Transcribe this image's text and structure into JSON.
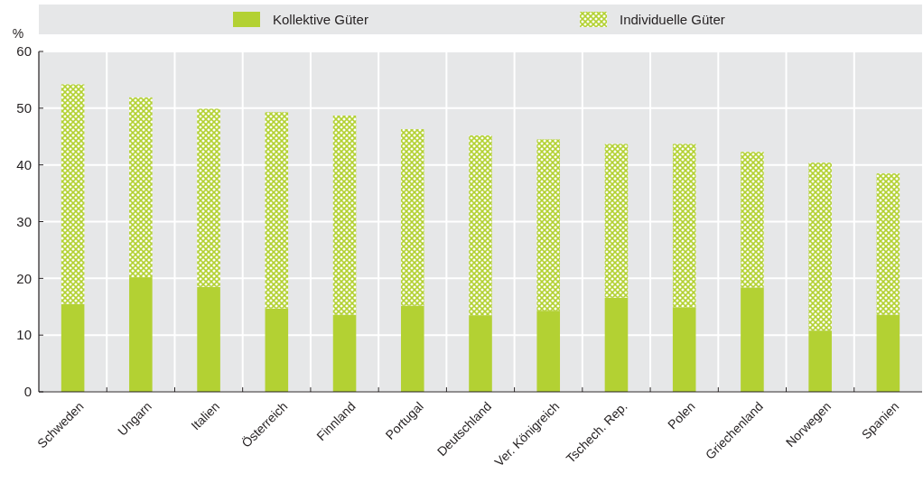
{
  "chart_data": {
    "type": "bar",
    "ylabel": "%",
    "stacked": true,
    "categories": [
      "Schweden",
      "Ungarn",
      "Italien",
      "Österreich",
      "Finnland",
      "Portugal",
      "Deutschland",
      "Ver. Königreich",
      "Tschech. Rep.",
      "Polen",
      "Griechenland",
      "Norwegen",
      "Spanien"
    ],
    "series": [
      {
        "name": "Kollektive Güter",
        "color": "#b3d133",
        "values": [
          15.5,
          20.2,
          18.5,
          14.7,
          13.6,
          15.2,
          13.5,
          14.3,
          16.6,
          14.9,
          18.4,
          10.8,
          13.6
        ]
      },
      {
        "name": "Individuelle Güter",
        "color": "#b3d133",
        "values": [
          38.7,
          31.7,
          31.4,
          34.6,
          35.1,
          31.1,
          31.7,
          30.2,
          27.1,
          28.8,
          23.9,
          29.6,
          24.9
        ]
      }
    ],
    "ylim": [
      0,
      60
    ],
    "yticks": [
      0,
      10,
      20,
      30,
      40,
      50,
      60
    ],
    "grid": true,
    "legend": "top"
  }
}
